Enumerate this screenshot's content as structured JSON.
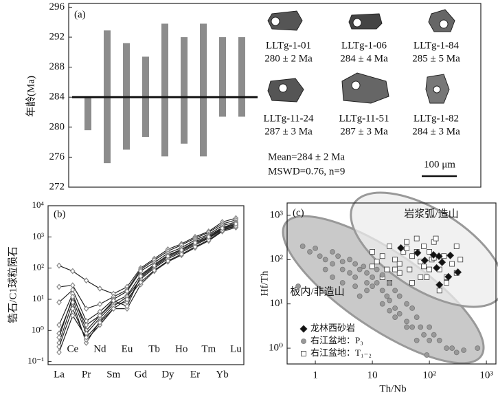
{
  "chart_data": [
    {
      "type": "range-bar",
      "panel": "(a)",
      "y_label": "年龄(Ma)",
      "high": [
        284.1,
        292.9,
        291.2,
        289.4,
        293.8,
        292.0,
        293.8,
        292.0,
        292.0
      ],
      "low": [
        279.6,
        275.2,
        277.0,
        278.7,
        276.1,
        277.8,
        276.1,
        281.4,
        281.4
      ],
      "color": "#8c8c8c",
      "mean": 284,
      "ylim": [
        272,
        296.5
      ],
      "yticks": [
        272,
        276,
        280,
        284,
        288,
        292,
        296
      ],
      "grains": [
        {
          "name": "LLTg-1-01",
          "age": "280 ± 2 Ma"
        },
        {
          "name": "LLTg-1-06",
          "age": "284 ± 4 Ma"
        },
        {
          "name": "LLTg-1-84",
          "age": "285 ± 5 Ma"
        },
        {
          "name": "LLTg-11-24",
          "age": "287 ± 3 Ma"
        },
        {
          "name": "LLTg-11-51",
          "age": "287 ± 3 Ma"
        },
        {
          "name": "LLTg-1-82",
          "age": "284 ± 3 Ma"
        }
      ],
      "annotations": [
        "Mean=284 ± 2 Ma",
        "MSWD=0.76, n=9",
        "100 μm"
      ]
    },
    {
      "type": "line",
      "panel": "(b)",
      "y_label": "锆石/C1球粒陨石",
      "log_y": true,
      "categories": [
        "La",
        "Ce",
        "Pr",
        "Nd",
        "Sm",
        "Eu",
        "Gd",
        "Tb",
        "Dy",
        "Ho",
        "Er",
        "Tm",
        "Yb",
        "Lu"
      ],
      "line_color": "#222222",
      "marker_color": "#888888",
      "series": [
        {
          "values": [
            120,
            80,
            40,
            22,
            15,
            25,
            100,
            200,
            400,
            600,
            1000,
            1500,
            3000,
            4000
          ]
        },
        {
          "values": [
            25,
            28,
            5,
            7,
            12,
            20,
            90,
            180,
            350,
            550,
            900,
            1400,
            2600,
            3500
          ]
        },
        {
          "values": [
            8,
            20,
            2,
            4,
            10,
            18,
            80,
            150,
            300,
            450,
            800,
            1200,
            2300,
            3000
          ]
        },
        {
          "values": [
            1.5,
            15,
            1,
            3,
            8,
            13,
            60,
            130,
            260,
            400,
            700,
            1100,
            2000,
            2800
          ]
        },
        {
          "values": [
            0.8,
            10,
            0.8,
            2.5,
            7,
            8,
            50,
            110,
            220,
            350,
            600,
            950,
            1800,
            2500
          ]
        },
        {
          "values": [
            0.4,
            8,
            0.4,
            2,
            6,
            12,
            45,
            100,
            200,
            320,
            550,
            900,
            1700,
            2300
          ]
        },
        {
          "values": [
            0.3,
            5,
            0.5,
            1.5,
            5,
            5,
            30,
            80,
            160,
            260,
            450,
            750,
            1500,
            2000
          ]
        },
        {
          "values": [
            0.2,
            3,
            0.6,
            1.8,
            5,
            10,
            35,
            85,
            170,
            280,
            480,
            800,
            1600,
            2200
          ]
        },
        {
          "values": [
            0.6,
            12,
            1.5,
            3,
            9,
            6,
            55,
            120,
            240,
            380,
            650,
            1000,
            1900,
            2600
          ]
        }
      ],
      "ylim": [
        0.08,
        10000
      ],
      "yticks": [
        {
          "value": 0.1,
          "label": "10⁻¹"
        },
        {
          "value": 1,
          "label": "10⁰"
        },
        {
          "value": 10,
          "label": "10¹"
        },
        {
          "value": 100,
          "label": "10²"
        },
        {
          "value": 1000,
          "label": "10³"
        },
        {
          "value": 10000,
          "label": "10⁴"
        }
      ]
    },
    {
      "type": "scatter",
      "panel": "(c)",
      "x_label": "Th/Nb",
      "y_label": "Hf/Th",
      "log_x": true,
      "log_y": true,
      "fields": [
        "岩浆弧/造山",
        "板内/非造山"
      ],
      "xlim": [
        0.32,
        1470
      ],
      "ylim": [
        0.44,
        1900
      ],
      "xticks": [
        1,
        10,
        {
          "value": 100,
          "label": "10²"
        },
        {
          "value": 1000,
          "label": "10³"
        }
      ],
      "yticks": [
        {
          "value": 1,
          "label": "10⁰"
        },
        {
          "value": 10,
          "label": "10¹"
        },
        {
          "value": 100,
          "label": "10²"
        },
        {
          "value": 1000,
          "label": "10³"
        }
      ],
      "series": [
        {
          "name": "龙林西砂岩",
          "marker": "diamond",
          "color": "#111111",
          "x": [
            31.6,
            62,
            83,
            118,
            147,
            167,
            233,
            134,
            150,
            216,
            316
          ],
          "values": [
            183,
            142,
            96,
            128,
            119,
            87,
            124,
            65,
            27,
            41,
            52
          ]
        },
        {
          "name": "右江盆地：P₃",
          "marker": "circle",
          "color": "#999999",
          "x": [
            0.6,
            0.8,
            1,
            1.2,
            1.5,
            2,
            2,
            2.5,
            3,
            3,
            4,
            4,
            5,
            5,
            6,
            7,
            8,
            8,
            10,
            10,
            12,
            12,
            15,
            15,
            18,
            20,
            20,
            25,
            25,
            30,
            30,
            40,
            40,
            50,
            50,
            60,
            70,
            80,
            100,
            100,
            120,
            150,
            200,
            250,
            300,
            2,
            3,
            5,
            8,
            15,
            25,
            40,
            60,
            0.5,
            700,
            400,
            1.5,
            6,
            20,
            90
          ],
          "values": [
            200,
            150,
            180,
            120,
            100,
            150,
            80,
            120,
            90,
            60,
            100,
            50,
            80,
            40,
            60,
            70,
            50,
            30,
            40,
            25,
            30,
            60,
            20,
            45,
            15,
            30,
            12,
            20,
            8,
            15,
            6,
            10,
            4,
            8,
            3,
            5,
            3,
            2,
            3,
            1.5,
            2,
            1.5,
            1,
            1,
            0.8,
            40,
            30,
            25,
            20,
            10,
            5,
            3,
            1.5,
            25,
            1,
            0.9,
            60,
            15,
            7,
            0.7
          ]
        },
        {
          "name": "右江盆地：T₁₋₂",
          "marker": "square",
          "color": "#ffffff",
          "x": [
            10,
            12,
            15,
            18,
            20,
            25,
            30,
            35,
            40,
            45,
            50,
            60,
            70,
            80,
            90,
            100,
            110,
            120,
            150,
            180,
            200,
            250,
            300,
            350,
            15,
            20,
            30,
            50,
            70,
            100,
            150,
            200,
            40,
            60,
            80,
            120,
            25,
            10,
            300,
            130
          ],
          "values": [
            150,
            90,
            120,
            60,
            200,
            100,
            80,
            150,
            250,
            60,
            120,
            300,
            90,
            200,
            40,
            150,
            100,
            250,
            60,
            120,
            30,
            80,
            50,
            100,
            40,
            30,
            50,
            30,
            40,
            60,
            20,
            40,
            180,
            150,
            70,
            110,
            60,
            70,
            200,
            300
          ]
        }
      ]
    }
  ]
}
